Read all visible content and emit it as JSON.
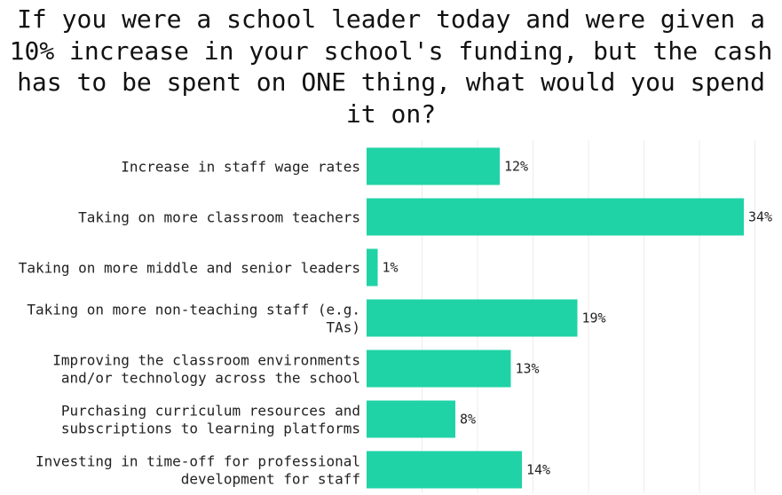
{
  "chart_data": {
    "type": "bar",
    "orientation": "horizontal",
    "title": "If you were a school leader today and were given a 10% increase in your school's funding, but the cash has to be spent on ONE thing, what would you spend it on?",
    "categories": [
      "Increase in staff wage rates",
      "Taking on more classroom teachers",
      "Taking on more middle and senior leaders",
      "Taking on more non-teaching staff (e.g. TAs)",
      "Improving the classroom environments and/or technology across the school",
      "Purchasing curriculum resources and subscriptions to learning platforms",
      "Investing in time-off for professional development for staff"
    ],
    "values": [
      12,
      34,
      1,
      19,
      13,
      8,
      14
    ],
    "data_labels": [
      "12%",
      "34%",
      "1%",
      "19%",
      "13%",
      "8%",
      "14%"
    ],
    "xlim": [
      0,
      36
    ],
    "grid": true,
    "bar_color": "#1fd3a6"
  }
}
